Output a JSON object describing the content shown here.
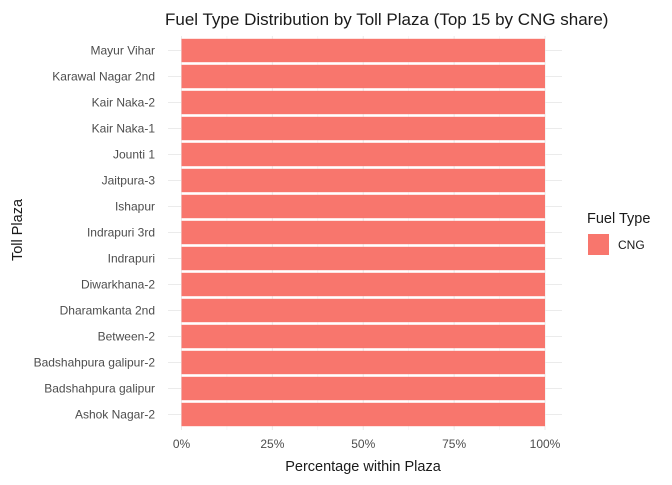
{
  "chart_data": {
    "type": "bar",
    "orientation": "horizontal",
    "stacked": true,
    "title": "Fuel Type Distribution by Toll Plaza (Top 15 by CNG share)",
    "xlabel": "Percentage within Plaza",
    "ylabel": "Toll Plaza",
    "xlim": [
      0,
      1
    ],
    "x_ticks": [
      0,
      0.25,
      0.5,
      0.75,
      1.0
    ],
    "x_tick_labels": [
      "0%",
      "25%",
      "50%",
      "75%",
      "100%"
    ],
    "categories": [
      "Mayur Vihar",
      "Karawal Nagar 2nd",
      "Kair Naka-2",
      "Kair Naka-1",
      "Jounti 1",
      "Jaitpura-3",
      "Ishapur",
      "Indrapuri 3rd",
      "Indrapuri",
      "Diwarkhana-2",
      "Dharamkanta 2nd",
      "Between-2",
      "Badshahpura galipur-2",
      "Badshahpura galipur",
      "Ashok Nagar-2"
    ],
    "series": [
      {
        "name": "CNG",
        "color": "#F8766D",
        "values": [
          1,
          1,
          1,
          1,
          1,
          1,
          1,
          1,
          1,
          1,
          1,
          1,
          1,
          1,
          1
        ]
      }
    ],
    "legend": {
      "title": "Fuel Type",
      "placement": "right"
    },
    "grid": true
  }
}
